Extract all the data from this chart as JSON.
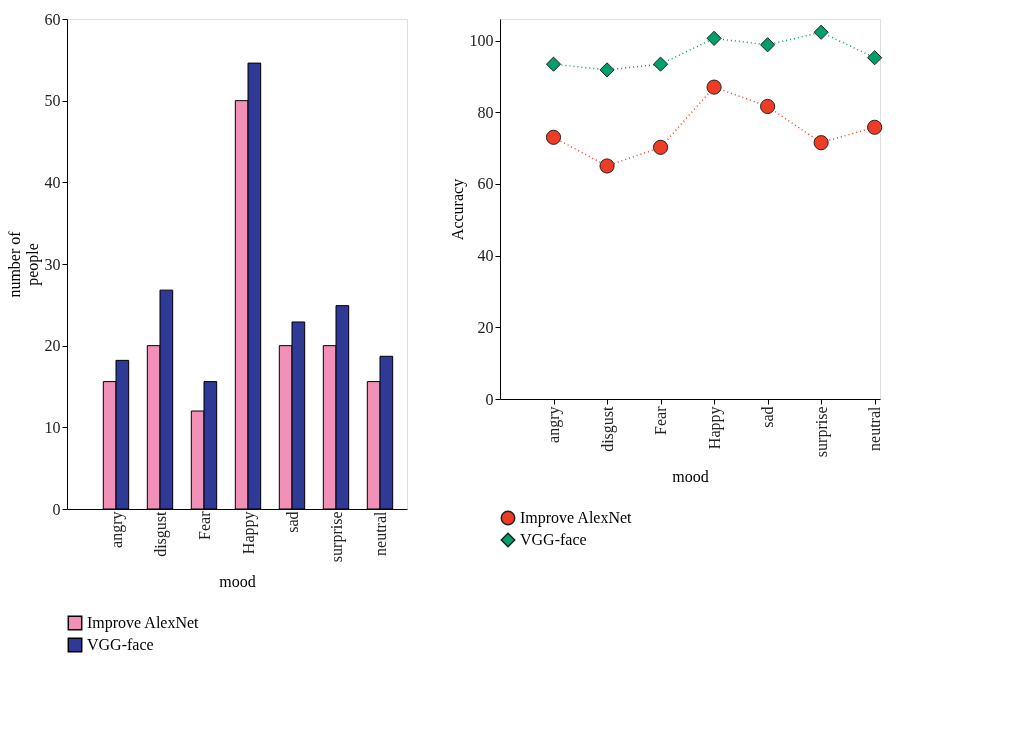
{
  "chart_data": [
    {
      "type": "bar",
      "xlabel": "mood",
      "ylabel": "number of people",
      "categories": [
        "angry",
        "disgust",
        "Fear",
        "Happy",
        "sad",
        "surprise",
        "neutral"
      ],
      "ylim": [
        0,
        60
      ],
      "yticks": [
        0,
        10,
        20,
        30,
        40,
        50,
        60
      ],
      "grid": false,
      "legend": "bottom left",
      "series": [
        {
          "name": "Improve AlexNet",
          "color": "#f291b8",
          "values": [
            15.6,
            20,
            12,
            50,
            20,
            20,
            15.6
          ]
        },
        {
          "name": "VGG-face",
          "color": "#2e3a96",
          "values": [
            18.2,
            26.8,
            15.6,
            54.6,
            22.9,
            24.9,
            18.7
          ]
        }
      ]
    },
    {
      "type": "line",
      "xlabel": "mood",
      "ylabel": "Accuracy",
      "categories": [
        "angry",
        "disgust",
        "Fear",
        "Happy",
        "sad",
        "surprise",
        "neutral"
      ],
      "ylim": [
        0,
        106
      ],
      "yticks": [
        0,
        20,
        40,
        60,
        80,
        100
      ],
      "grid": false,
      "legend": "bottom left",
      "line_style": "dotted",
      "series": [
        {
          "name": "Improve AlexNet",
          "color": "#f03c24",
          "marker": "circle",
          "values": [
            73,
            65,
            70.2,
            87,
            81.6,
            71.5,
            75.8
          ]
        },
        {
          "name": "VGG-face",
          "color": "#00a06a",
          "marker": "diamond",
          "values": [
            93.4,
            91.8,
            93.4,
            100.6,
            98.8,
            102.3,
            95.2
          ]
        }
      ]
    }
  ]
}
